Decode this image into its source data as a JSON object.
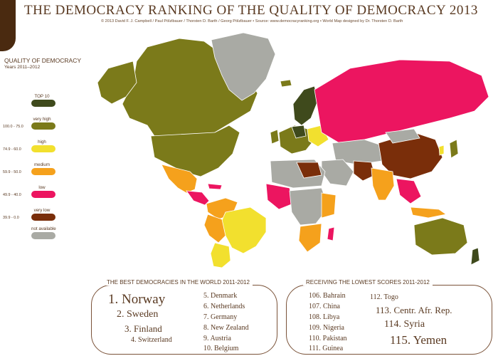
{
  "header": {
    "title": "THE DEMOCRACY RANKING OF THE QUALITY OF DEMOCRACY 2013",
    "credits": "© 2013 David F. J. Campbell / Paul Pölzlbauer / Thorsten D. Barth / Georg Pölzlbauer • Source: www.democracyranking.org • World Map designed by Dr. Thorsten D. Barth"
  },
  "legend": {
    "heading": "QUALITY OF DEMOCRACY",
    "years": "Years 2011–2012",
    "items": [
      {
        "label": "TOP 10",
        "range": "",
        "color": "#3f4a1c"
      },
      {
        "label": "very high",
        "range": "100.0 - 75.0",
        "color": "#7b7a1a"
      },
      {
        "label": "high",
        "range": "74.9 - 60.0",
        "color": "#f2e02e"
      },
      {
        "label": "medium",
        "range": "59.9 - 50.0",
        "color": "#f5a11c"
      },
      {
        "label": "low",
        "range": "49.9 - 40.0",
        "color": "#ec1560"
      },
      {
        "label": "very low",
        "range": "39.9 - 0.0",
        "color": "#7a2e0a"
      },
      {
        "label": "not available",
        "range": "",
        "color": "#a9aaa4"
      }
    ]
  },
  "best": {
    "heading": "THE BEST DEMOCRACIES IN THE WORLD 2011-2012",
    "ranks": [
      "1. Norway",
      "2. Sweden",
      "3. Finland",
      "4. Switzerland",
      "5. Denmark",
      "6. Netherlands",
      "7. Germany",
      "8. New Zealand",
      "9. Austria",
      "10. Belgium"
    ]
  },
  "lowest": {
    "heading": "RECEIVING THE LOWEST SCORES 2011-2012",
    "ranks": [
      "106. Bahrain",
      "107. China",
      "108. Libya",
      "109. Nigeria",
      "110. Pakistan",
      "111. Guinea",
      "112. Togo",
      "113. Centr. Afr. Rep.",
      "114. Syria",
      "115. Yemen"
    ]
  }
}
